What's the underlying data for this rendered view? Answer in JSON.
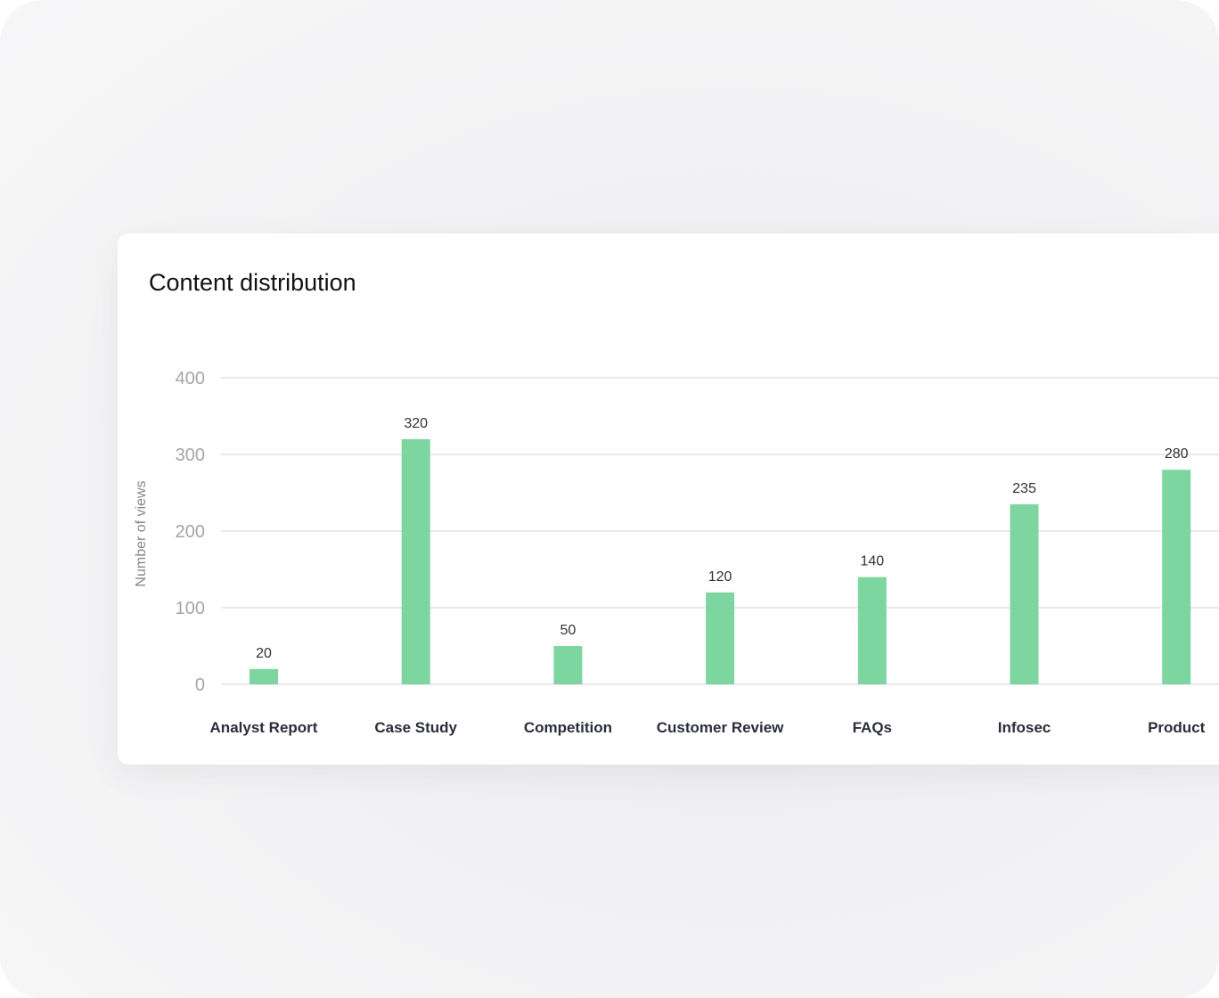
{
  "chart_data": {
    "type": "bar",
    "title": "Content distribution",
    "xlabel": "",
    "ylabel": "Number of views",
    "ylim": [
      0,
      400
    ],
    "yticks": [
      "0",
      "100",
      "200",
      "300",
      "400"
    ],
    "grid": true,
    "categories": [
      "Analyst Report",
      "Case Study",
      "Competition",
      "Customer Review",
      "FAQs",
      "Infosec",
      "Product"
    ],
    "values": [
      20,
      320,
      50,
      120,
      140,
      235,
      280
    ],
    "data_labels": [
      "20",
      "320",
      "50",
      "120",
      "140",
      "235",
      "280"
    ],
    "bar_color": "#7dd6a0"
  }
}
